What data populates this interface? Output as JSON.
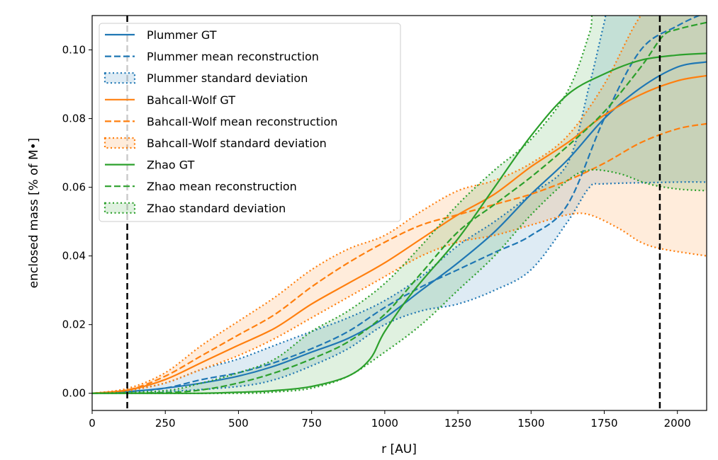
{
  "chart_data": {
    "type": "line",
    "xlabel": "r [AU]",
    "ylabel": "enclosed mass [% of M•]",
    "xlim": [
      0,
      2100
    ],
    "ylim": [
      -0.005,
      0.11
    ],
    "xticks": [
      0,
      250,
      500,
      750,
      1000,
      1250,
      1500,
      1750,
      2000
    ],
    "xtick_labels": [
      "0",
      "250",
      "500",
      "750",
      "1000",
      "1250",
      "1500",
      "1750",
      "2000"
    ],
    "yticks": [
      0,
      0.02,
      0.04,
      0.06,
      0.08,
      0.1
    ],
    "ytick_labels": [
      "0.00",
      "0.02",
      "0.04",
      "0.06",
      "0.08",
      "0.10"
    ],
    "grid": false,
    "legend_position": "top-left",
    "vertical_lines": [
      120,
      1940
    ],
    "series": [
      {
        "name": "Plummer GT",
        "color": "#1f77b4",
        "style": "solid",
        "points": [
          [
            0,
            0
          ],
          [
            125,
            0.0005
          ],
          [
            250,
            0.0015
          ],
          [
            375,
            0.003
          ],
          [
            500,
            0.005
          ],
          [
            625,
            0.008
          ],
          [
            750,
            0.012
          ],
          [
            875,
            0.016
          ],
          [
            1000,
            0.022
          ],
          [
            1125,
            0.03
          ],
          [
            1250,
            0.038
          ],
          [
            1375,
            0.047
          ],
          [
            1500,
            0.058
          ],
          [
            1625,
            0.068
          ],
          [
            1750,
            0.08
          ],
          [
            1875,
            0.089
          ],
          [
            2000,
            0.095
          ],
          [
            2100,
            0.0965
          ]
        ]
      },
      {
        "name": "Plummer mean reconstruction",
        "color": "#1f77b4",
        "style": "dashed",
        "points": [
          [
            0,
            0
          ],
          [
            125,
            0.0005
          ],
          [
            250,
            0.0015
          ],
          [
            375,
            0.004
          ],
          [
            500,
            0.006
          ],
          [
            625,
            0.009
          ],
          [
            750,
            0.013
          ],
          [
            875,
            0.018
          ],
          [
            1000,
            0.025
          ],
          [
            1125,
            0.031
          ],
          [
            1250,
            0.036
          ],
          [
            1375,
            0.041
          ],
          [
            1500,
            0.046
          ],
          [
            1625,
            0.055
          ],
          [
            1750,
            0.08
          ],
          [
            1875,
            0.1
          ],
          [
            2000,
            0.107
          ],
          [
            2100,
            0.111
          ]
        ]
      },
      {
        "name": "Plummer standard deviation",
        "color": "#1f77b4",
        "style": "band",
        "upper": [
          [
            0,
            0
          ],
          [
            125,
            0.001
          ],
          [
            250,
            0.003
          ],
          [
            375,
            0.007
          ],
          [
            500,
            0.01
          ],
          [
            625,
            0.014
          ],
          [
            750,
            0.018
          ],
          [
            875,
            0.022
          ],
          [
            1000,
            0.027
          ],
          [
            1125,
            0.034
          ],
          [
            1250,
            0.043
          ],
          [
            1375,
            0.05
          ],
          [
            1500,
            0.058
          ],
          [
            1625,
            0.067
          ],
          [
            1700,
            0.09
          ],
          [
            1750,
            0.108
          ],
          [
            1800,
            0.125
          ],
          [
            2100,
            0.14
          ]
        ],
        "lower": [
          [
            0,
            0
          ],
          [
            250,
            0.0005
          ],
          [
            500,
            0.002
          ],
          [
            625,
            0.004
          ],
          [
            750,
            0.008
          ],
          [
            875,
            0.013
          ],
          [
            1000,
            0.02
          ],
          [
            1125,
            0.024
          ],
          [
            1250,
            0.026
          ],
          [
            1375,
            0.03
          ],
          [
            1500,
            0.036
          ],
          [
            1625,
            0.05
          ],
          [
            1700,
            0.06
          ],
          [
            1750,
            0.061
          ],
          [
            2000,
            0.0615
          ],
          [
            2100,
            0.0615
          ]
        ]
      },
      {
        "name": "Bahcall-Wolf GT",
        "color": "#ff7f0e",
        "style": "solid",
        "points": [
          [
            0,
            0
          ],
          [
            125,
            0.001
          ],
          [
            250,
            0.004
          ],
          [
            375,
            0.009
          ],
          [
            500,
            0.014
          ],
          [
            625,
            0.019
          ],
          [
            750,
            0.026
          ],
          [
            875,
            0.032
          ],
          [
            1000,
            0.038
          ],
          [
            1125,
            0.045
          ],
          [
            1250,
            0.052
          ],
          [
            1375,
            0.058
          ],
          [
            1500,
            0.066
          ],
          [
            1625,
            0.073
          ],
          [
            1750,
            0.081
          ],
          [
            1875,
            0.087
          ],
          [
            2000,
            0.091
          ],
          [
            2100,
            0.0925
          ]
        ]
      },
      {
        "name": "Bahcall-Wolf mean reconstruction",
        "color": "#ff7f0e",
        "style": "dashed",
        "points": [
          [
            0,
            0
          ],
          [
            125,
            0.001
          ],
          [
            250,
            0.005
          ],
          [
            375,
            0.011
          ],
          [
            500,
            0.017
          ],
          [
            625,
            0.023
          ],
          [
            750,
            0.031
          ],
          [
            875,
            0.038
          ],
          [
            1000,
            0.044
          ],
          [
            1125,
            0.049
          ],
          [
            1250,
            0.052
          ],
          [
            1375,
            0.055
          ],
          [
            1500,
            0.058
          ],
          [
            1625,
            0.062
          ],
          [
            1750,
            0.067
          ],
          [
            1875,
            0.073
          ],
          [
            2000,
            0.077
          ],
          [
            2100,
            0.0785
          ]
        ]
      },
      {
        "name": "Bahcall-Wolf standard deviation",
        "color": "#ff7f0e",
        "style": "band",
        "upper": [
          [
            0,
            0
          ],
          [
            125,
            0.0015
          ],
          [
            250,
            0.006
          ],
          [
            375,
            0.014
          ],
          [
            500,
            0.021
          ],
          [
            625,
            0.028
          ],
          [
            750,
            0.036
          ],
          [
            875,
            0.042
          ],
          [
            1000,
            0.046
          ],
          [
            1125,
            0.053
          ],
          [
            1250,
            0.059
          ],
          [
            1375,
            0.062
          ],
          [
            1500,
            0.067
          ],
          [
            1625,
            0.075
          ],
          [
            1750,
            0.09
          ],
          [
            1875,
            0.11
          ],
          [
            2000,
            0.12
          ],
          [
            2100,
            0.125
          ]
        ],
        "lower": [
          [
            0,
            0
          ],
          [
            125,
            0.0008
          ],
          [
            250,
            0.003
          ],
          [
            375,
            0.007
          ],
          [
            500,
            0.011
          ],
          [
            625,
            0.016
          ],
          [
            750,
            0.022
          ],
          [
            875,
            0.028
          ],
          [
            1000,
            0.034
          ],
          [
            1125,
            0.04
          ],
          [
            1250,
            0.044
          ],
          [
            1375,
            0.046
          ],
          [
            1500,
            0.049
          ],
          [
            1625,
            0.052
          ],
          [
            1700,
            0.052
          ],
          [
            1800,
            0.048
          ],
          [
            1875,
            0.044
          ],
          [
            1950,
            0.042
          ],
          [
            2100,
            0.04
          ]
        ]
      },
      {
        "name": "Zhao GT",
        "color": "#2ca02c",
        "style": "solid",
        "points": [
          [
            0,
            0
          ],
          [
            250,
            0
          ],
          [
            375,
            0
          ],
          [
            500,
            0.0003
          ],
          [
            625,
            0.0008
          ],
          [
            750,
            0.002
          ],
          [
            875,
            0.005
          ],
          [
            950,
            0.01
          ],
          [
            1000,
            0.018
          ],
          [
            1100,
            0.03
          ],
          [
            1250,
            0.045
          ],
          [
            1375,
            0.06
          ],
          [
            1500,
            0.075
          ],
          [
            1625,
            0.087
          ],
          [
            1750,
            0.093
          ],
          [
            1875,
            0.097
          ],
          [
            2000,
            0.0985
          ],
          [
            2100,
            0.099
          ]
        ]
      },
      {
        "name": "Zhao mean reconstruction",
        "color": "#2ca02c",
        "style": "dashed",
        "points": [
          [
            0,
            0
          ],
          [
            250,
            0.0002
          ],
          [
            375,
            0.001
          ],
          [
            500,
            0.003
          ],
          [
            625,
            0.006
          ],
          [
            750,
            0.01
          ],
          [
            875,
            0.015
          ],
          [
            1000,
            0.023
          ],
          [
            1125,
            0.035
          ],
          [
            1250,
            0.047
          ],
          [
            1375,
            0.055
          ],
          [
            1500,
            0.063
          ],
          [
            1625,
            0.072
          ],
          [
            1750,
            0.082
          ],
          [
            1875,
            0.095
          ],
          [
            1950,
            0.104
          ],
          [
            2000,
            0.106
          ],
          [
            2100,
            0.108
          ]
        ]
      },
      {
        "name": "Zhao standard deviation",
        "color": "#2ca02c",
        "style": "band",
        "upper": [
          [
            0,
            0
          ],
          [
            250,
            0.0008
          ],
          [
            375,
            0.003
          ],
          [
            500,
            0.006
          ],
          [
            625,
            0.01
          ],
          [
            750,
            0.018
          ],
          [
            875,
            0.024
          ],
          [
            1000,
            0.032
          ],
          [
            1125,
            0.043
          ],
          [
            1250,
            0.055
          ],
          [
            1375,
            0.065
          ],
          [
            1500,
            0.074
          ],
          [
            1625,
            0.088
          ],
          [
            1700,
            0.105
          ],
          [
            1750,
            0.12
          ],
          [
            2100,
            0.14
          ]
        ],
        "lower": [
          [
            0,
            0
          ],
          [
            500,
            0
          ],
          [
            625,
            0.0004
          ],
          [
            750,
            0.0015
          ],
          [
            875,
            0.005
          ],
          [
            1000,
            0.012
          ],
          [
            1125,
            0.02
          ],
          [
            1250,
            0.03
          ],
          [
            1375,
            0.04
          ],
          [
            1500,
            0.052
          ],
          [
            1625,
            0.062
          ],
          [
            1700,
            0.065
          ],
          [
            1800,
            0.064
          ],
          [
            1900,
            0.061
          ],
          [
            2000,
            0.0595
          ],
          [
            2100,
            0.059
          ]
        ]
      }
    ]
  }
}
